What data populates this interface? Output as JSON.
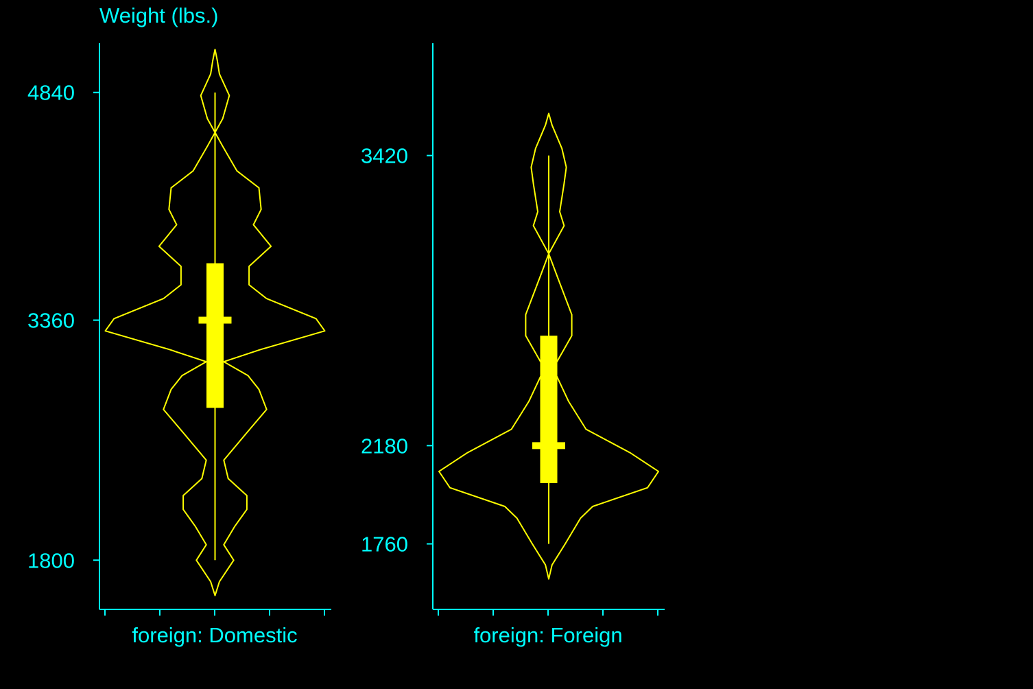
{
  "colors": {
    "background": "#000000",
    "axis": "#00ffff",
    "violin": "#ffff00",
    "text": "#00ffff"
  },
  "chart_data": [
    {
      "type": "violin",
      "title": "Weight (lbs.)",
      "xlabel": "foreign: Domestic",
      "ylabel": "",
      "yticks": [
        1800,
        3360,
        4840
      ],
      "ylim": [
        1480,
        5160
      ],
      "box": {
        "min": 1800,
        "q1": 2790,
        "median": 3360,
        "q3": 3730,
        "max": 4840
      },
      "density": [
        {
          "y": 1570,
          "w": 0.0
        },
        {
          "y": 1660,
          "w": 0.04
        },
        {
          "y": 1800,
          "w": 0.17
        },
        {
          "y": 1900,
          "w": 0.08
        },
        {
          "y": 2020,
          "w": 0.18
        },
        {
          "y": 2130,
          "w": 0.29
        },
        {
          "y": 2220,
          "w": 0.29
        },
        {
          "y": 2330,
          "w": 0.12
        },
        {
          "y": 2450,
          "w": 0.08
        },
        {
          "y": 2620,
          "w": 0.28
        },
        {
          "y": 2780,
          "w": 0.47
        },
        {
          "y": 2910,
          "w": 0.4
        },
        {
          "y": 3000,
          "w": 0.3
        },
        {
          "y": 3090,
          "w": 0.08
        },
        {
          "y": 3170,
          "w": 0.42
        },
        {
          "y": 3290,
          "w": 1.0
        },
        {
          "y": 3370,
          "w": 0.92
        },
        {
          "y": 3500,
          "w": 0.47
        },
        {
          "y": 3590,
          "w": 0.31
        },
        {
          "y": 3710,
          "w": 0.31
        },
        {
          "y": 3840,
          "w": 0.51
        },
        {
          "y": 3980,
          "w": 0.35
        },
        {
          "y": 4080,
          "w": 0.42
        },
        {
          "y": 4220,
          "w": 0.4
        },
        {
          "y": 4330,
          "w": 0.2
        },
        {
          "y": 4490,
          "w": 0.07
        },
        {
          "y": 4580,
          "w": 0.0
        },
        {
          "y": 4670,
          "w": 0.07
        },
        {
          "y": 4820,
          "w": 0.13
        },
        {
          "y": 4960,
          "w": 0.04
        },
        {
          "y": 5050,
          "w": 0.02
        },
        {
          "y": 5120,
          "w": 0.0
        }
      ]
    },
    {
      "type": "violin",
      "title": "",
      "xlabel": "foreign: Foreign",
      "ylabel": "",
      "yticks": [
        1760,
        2180,
        3420
      ],
      "ylim": [
        1480,
        3900
      ],
      "box": {
        "min": 1760,
        "q1": 2020,
        "median": 2180,
        "q3": 2650,
        "max": 3420
      },
      "density": [
        {
          "y": 1610,
          "w": 0.0
        },
        {
          "y": 1670,
          "w": 0.03
        },
        {
          "y": 1760,
          "w": 0.15
        },
        {
          "y": 1870,
          "w": 0.29
        },
        {
          "y": 1920,
          "w": 0.4
        },
        {
          "y": 2000,
          "w": 0.9
        },
        {
          "y": 2070,
          "w": 1.0
        },
        {
          "y": 2150,
          "w": 0.74
        },
        {
          "y": 2250,
          "w": 0.34
        },
        {
          "y": 2370,
          "w": 0.18
        },
        {
          "y": 2510,
          "w": 0.04
        },
        {
          "y": 2650,
          "w": 0.21
        },
        {
          "y": 2740,
          "w": 0.21
        },
        {
          "y": 2900,
          "w": 0.08
        },
        {
          "y": 3000,
          "w": 0.0
        },
        {
          "y": 3120,
          "w": 0.14
        },
        {
          "y": 3180,
          "w": 0.1
        },
        {
          "y": 3300,
          "w": 0.14
        },
        {
          "y": 3370,
          "w": 0.16
        },
        {
          "y": 3450,
          "w": 0.12
        },
        {
          "y": 3550,
          "w": 0.03
        },
        {
          "y": 3600,
          "w": 0.0
        }
      ]
    }
  ]
}
